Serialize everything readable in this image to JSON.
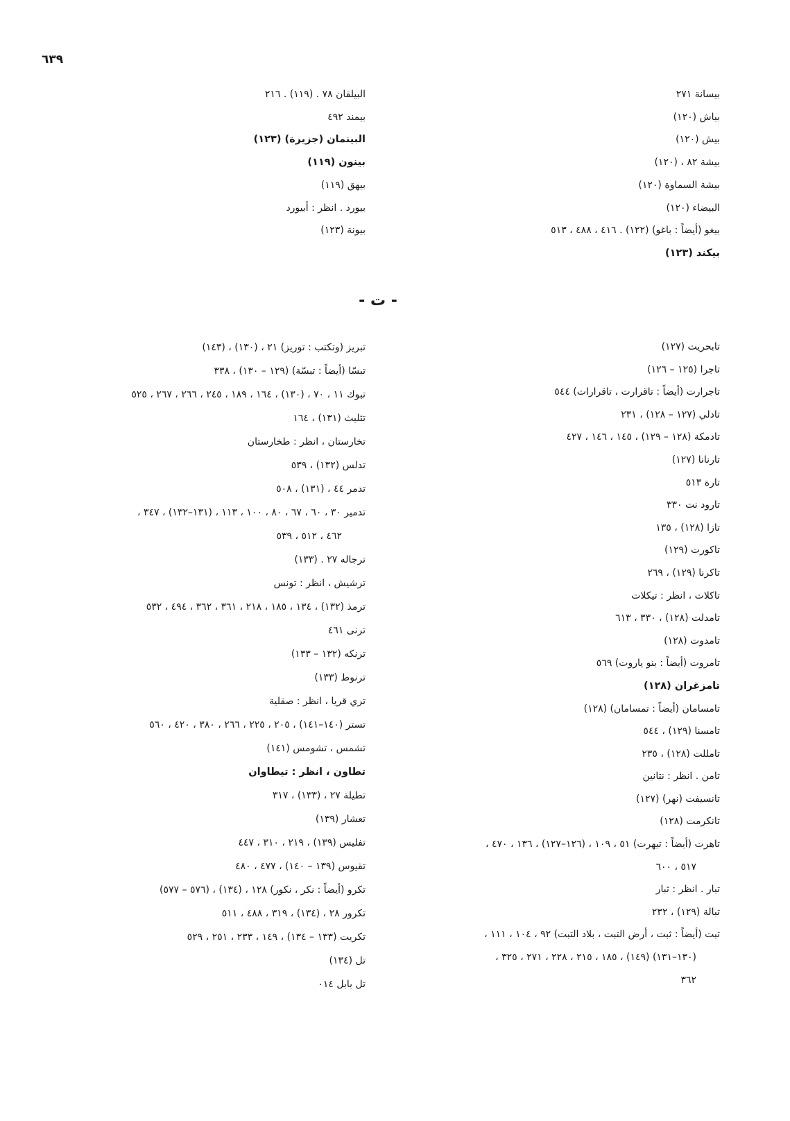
{
  "page_number": "٦٣٩",
  "section_letter": "- ت -",
  "right_top": [
    {
      "lines": [
        "بيسانة ٢٧١"
      ]
    },
    {
      "lines": [
        "بياش (١٢٠)"
      ]
    },
    {
      "lines": [
        "بيش (١٢٠)"
      ]
    },
    {
      "lines": [
        "بيشة ٨٢ ، (١٢٠)"
      ]
    },
    {
      "lines": [
        "بيشة السماوة (١٢٠)"
      ]
    },
    {
      "lines": [
        "البيضاء (١٢٠)"
      ]
    },
    {
      "lines": [
        "بيغو (أيضاً : باغو) (١٢٢) . ٤١٦ ، ٤٨٨ ، ٥١٣"
      ]
    },
    {
      "lines": [
        "بيكند (١٢٣)"
      ],
      "bold": true
    }
  ],
  "left_top": [
    {
      "lines": [
        "البيلقان ٧٨ . (١١٩) . ٢١٦"
      ]
    },
    {
      "lines": [
        "بيمند ٤٩٢"
      ]
    },
    {
      "lines": [
        "البينمان (جزيرة) (١٢٣)"
      ],
      "bold": true
    },
    {
      "lines": [
        "بينون (١١٩)"
      ],
      "bold": true
    },
    {
      "lines": [
        "بيهق (١١٩)"
      ]
    },
    {
      "lines": [
        "بيورد . انظر : أبيورد"
      ]
    },
    {
      "lines": [
        "بيونة (١٢٣)"
      ]
    }
  ],
  "right_bottom": [
    {
      "lines": [
        "تابحريت (١٢٧)"
      ]
    },
    {
      "lines": [
        "تاجرا (١٢٥ – ١٢٦)"
      ]
    },
    {
      "lines": [
        "تاجرارت (أيضاً : تاقرارت ، تاقرارات) ٥٤٤"
      ]
    },
    {
      "lines": [
        "تادلي (١٢٧ – ١٢٨) ، ٢٣١"
      ]
    },
    {
      "lines": [
        "تادمكة (١٢٨ – ١٢٩) ، ١٤٥ ، ١٤٦ ، ٤٢٧"
      ]
    },
    {
      "lines": [
        "تارنانا (١٢٧)"
      ]
    },
    {
      "lines": [
        "تارة ٥١٣"
      ]
    },
    {
      "lines": [
        "تارود نت ٣٣٠"
      ]
    },
    {
      "lines": [
        "تازا (١٢٨) ، ١٣٥"
      ]
    },
    {
      "lines": [
        "تاكورت (١٢٩)"
      ]
    },
    {
      "lines": [
        "تاكرنا (١٢٩) ، ٢٦٩"
      ]
    },
    {
      "lines": [
        "تاكلات ، انظر : تيكلات"
      ]
    },
    {
      "lines": [
        "تامدلت (١٢٨) ، ٣٣٠ ، ٦١٣"
      ]
    },
    {
      "lines": [
        "تامدوت (١٢٨)"
      ]
    },
    {
      "lines": [
        "تامروت (أيضاً : بنو ياروت) ٥٦٩"
      ]
    },
    {
      "lines": [
        "تامزغران (١٢٨)"
      ],
      "bold": true
    },
    {
      "lines": [
        "تامسامان (أيضاً : تمسامان) (١٢٨)"
      ]
    },
    {
      "lines": [
        "تامسنا (١٢٩) ، ٥٤٤"
      ]
    },
    {
      "lines": [
        "تامللت (١٢٨) ، ٢٣٥"
      ]
    },
    {
      "lines": [
        "تامن . انظر : نتانين"
      ]
    },
    {
      "lines": [
        "تانسيفت (نهر) (١٢٧)"
      ]
    },
    {
      "lines": [
        "تانكرمت (١٢٨)"
      ]
    },
    {
      "lines": [
        "تاهرت (أيضاً : تيهرت) ٥١ ، ١٠٩ ، (١٢٦–١٢٧) ، ١٣٦ ، ٤٧٠ ،",
        "٥١٧ ، ٦٠٠"
      ]
    },
    {
      "lines": [
        "تبار . انظر : ثبار"
      ]
    },
    {
      "lines": [
        "تبالة (١٢٩) ، ٢٣٢"
      ]
    },
    {
      "lines": [
        "تبت (أيضاً : ثبت ، أرض التبت ، بلاد التبت) ٩٢ ، ١٠٤ ، ١١١ ،",
        "(١٣٠–١٣١) (١٤٩) ، ١٨٥ ، ٢١٥ ، ٢٢٨ ، ٢٧١ ، ٣٢٥ ،",
        "٣٦٢"
      ]
    }
  ],
  "left_bottom": [
    {
      "lines": [
        "تبريز (وتكتب : توريز) ٢١ ، (١٣٠) ، (١٤٣)"
      ]
    },
    {
      "lines": [
        "تبسّا (أيضاً : تبسّة) (١٢٩ – ١٣٠) ، ٣٣٨"
      ]
    },
    {
      "lines": [
        "تبوك ١١ ، ٧٠ ، (١٣٠) ، ١٦٤ ، ١٨٩ ، ٢٤٥ ، ٢٦٦ ، ٢٦٧ ، ٥٢٥"
      ]
    },
    {
      "lines": [
        "تثليث (١٣١) ، ١٦٤"
      ]
    },
    {
      "lines": [
        "تخارستان ، انظر : طخارستان"
      ]
    },
    {
      "lines": [
        "تدلس (١٣٢) ، ٥٣٩"
      ]
    },
    {
      "lines": [
        "تدمر ٤٤ ، (١٣١) ، ٥٠٨"
      ]
    },
    {
      "lines": [
        "تدمير ٣٠ ، ٦٠ ، ٦٧ ، ٨٠ ، ١٠٠ ، ١١٣ ، (١٣١–١٣٢) ، ٣٤٧ ،",
        "٤٦٢ ، ٥١٢ ، ٥٣٩"
      ]
    },
    {
      "lines": [
        "ترجاله ٢٧ . (١٣٣)"
      ]
    },
    {
      "lines": [
        "ترشيش ، انظر : تونس"
      ]
    },
    {
      "lines": [
        "ترمذ (١٣٢) ، ١٣٤ ، ١٨٥ ، ٢١٨ ، ٣٦١ ، ٣٦٢ ، ٤٩٤ ، ٥٣٢"
      ]
    },
    {
      "lines": [
        "ترنى ٤٦١"
      ]
    },
    {
      "lines": [
        "ترنكه (١٣٢ – ١٣٣)"
      ]
    },
    {
      "lines": [
        "ترنوط (١٣٣)"
      ]
    },
    {
      "lines": [
        "تري قريا ، انظر : صقلية"
      ]
    },
    {
      "lines": [
        "تستر (١٤٠–١٤١) ، ٢٠٥ ، ٢٢٥ ، ٢٦٦ ، ٣٨٠ ، ٤٢٠ ، ٥٦٠"
      ]
    },
    {
      "lines": [
        "تشمس ، تشومس (١٤١)"
      ]
    },
    {
      "lines": [
        "تطاون ، انظر : تيطاوان"
      ],
      "bold": true
    },
    {
      "lines": [
        "تطيلة ٢٧ ، (١٣٣) ، ٣١٧"
      ]
    },
    {
      "lines": [
        "تعشار (١٣٩)"
      ]
    },
    {
      "lines": [
        "تفليس (١٣٩) ، ٢١٩ ، ٣١٠ ، ٤٤٧"
      ]
    },
    {
      "lines": [
        "تقيوس (١٣٩ – ١٤٠) ، ٤٧٧ ، ٤٨٠"
      ]
    },
    {
      "lines": [
        "تكرو (أيضاً : نكر ، نكور) ١٢٨ ، (١٣٤) ، (٥٧٦ – ٥٧٧)"
      ]
    },
    {
      "lines": [
        "تكرور ٢٨ ، (١٣٤) ، ٣١٩ ، ٤٨٨ ، ٥١١"
      ]
    },
    {
      "lines": [
        "تكريت (١٣٣ – ١٣٤) ، ١٤٩ ، ٢٣٣ ، ٢٥١ ، ٥٢٩"
      ]
    },
    {
      "lines": [
        "تل (١٣٤)"
      ]
    },
    {
      "lines": [
        "تل بابل ٠١٤"
      ]
    }
  ]
}
